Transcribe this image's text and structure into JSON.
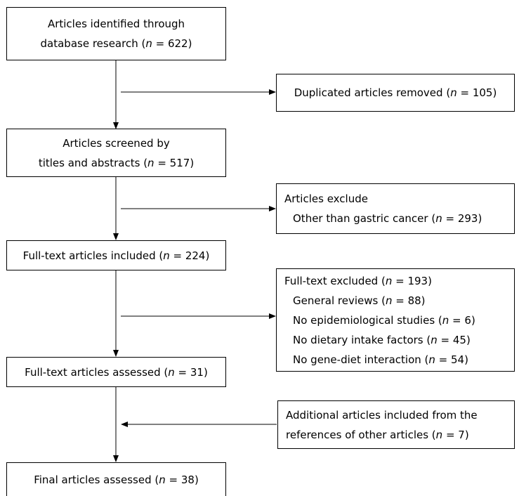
{
  "boxes": {
    "identified": {
      "line1": "Articles identified through",
      "line2_pre": "database research (",
      "n": "622"
    },
    "duplicates": {
      "line1_pre": "Duplicated articles removed (",
      "n": "105"
    },
    "screened": {
      "line1": "Articles screened by",
      "line2_pre": "titles and abstracts (",
      "n": "517"
    },
    "excluded": {
      "title": "Articles exclude",
      "item_pre": "Other than gastric cancer (",
      "n": "293"
    },
    "fulltext_included": {
      "line1_pre": "Full-text articles included (",
      "n": "224"
    },
    "fulltext_excluded": {
      "title_pre": "Full-text excluded (",
      "n": "193",
      "items": [
        {
          "pre": "General reviews (",
          "n": "88"
        },
        {
          "pre": "No epidemiological studies (",
          "n": "6"
        },
        {
          "pre": "No dietary intake factors (",
          "n": "45"
        },
        {
          "pre": "No gene-diet interaction (",
          "n": "54"
        }
      ]
    },
    "fulltext_assessed": {
      "line1_pre": "Full-text articles assessed (",
      "n": "31"
    },
    "additional": {
      "line1": "Additional articles included from the",
      "line2_pre": "references of other articles (",
      "n": "7"
    },
    "final": {
      "line1_pre": "Final articles assessed (",
      "n": "38"
    }
  },
  "n_symbol": "n",
  "eq": " = ",
  "close": ")"
}
